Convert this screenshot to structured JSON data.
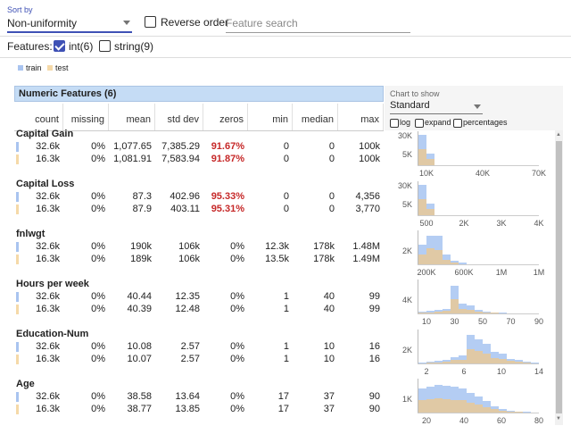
{
  "controls": {
    "sort_label": "Sort by",
    "sort_value": "Non-uniformity",
    "reverse_label": "Reverse order",
    "search_placeholder": "Feature search",
    "features_label": "Features:",
    "int_label": "int(6)",
    "string_label": "string(9)"
  },
  "legend": {
    "train": "train",
    "test": "test",
    "train_color": "#a9c4f0",
    "test_color": "#f5d9a8"
  },
  "table": {
    "title": "Numeric Features (6)",
    "columns": [
      "count",
      "missing",
      "mean",
      "std dev",
      "zeros",
      "min",
      "median",
      "max"
    ],
    "features": [
      {
        "name": "Capital Gain",
        "rows": [
          [
            "32.6k",
            "0%",
            "1,077.65",
            "7,385.29",
            "91.67%",
            "0",
            "0",
            "100k"
          ],
          [
            "16.3k",
            "0%",
            "1,081.91",
            "7,583.94",
            "91.87%",
            "0",
            "0",
            "100k"
          ]
        ],
        "zeros_red": true
      },
      {
        "name": "Capital Loss",
        "rows": [
          [
            "32.6k",
            "0%",
            "87.3",
            "402.96",
            "95.33%",
            "0",
            "0",
            "4,356"
          ],
          [
            "16.3k",
            "0%",
            "87.9",
            "403.11",
            "95.31%",
            "0",
            "0",
            "3,770"
          ]
        ],
        "zeros_red": true
      },
      {
        "name": "fnlwgt",
        "rows": [
          [
            "32.6k",
            "0%",
            "190k",
            "106k",
            "0%",
            "12.3k",
            "178k",
            "1.48M"
          ],
          [
            "16.3k",
            "0%",
            "189k",
            "106k",
            "0%",
            "13.5k",
            "178k",
            "1.49M"
          ]
        ],
        "zeros_red": false
      },
      {
        "name": "Hours per week",
        "rows": [
          [
            "32.6k",
            "0%",
            "40.44",
            "12.35",
            "0%",
            "1",
            "40",
            "99"
          ],
          [
            "16.3k",
            "0%",
            "40.39",
            "12.48",
            "0%",
            "1",
            "40",
            "99"
          ]
        ],
        "zeros_red": false
      },
      {
        "name": "Education-Num",
        "rows": [
          [
            "32.6k",
            "0%",
            "10.08",
            "2.57",
            "0%",
            "1",
            "10",
            "16"
          ],
          [
            "16.3k",
            "0%",
            "10.07",
            "2.57",
            "0%",
            "1",
            "10",
            "16"
          ]
        ],
        "zeros_red": false
      },
      {
        "name": "Age",
        "rows": [
          [
            "32.6k",
            "0%",
            "38.58",
            "13.64",
            "0%",
            "17",
            "37",
            "90"
          ],
          [
            "16.3k",
            "0%",
            "38.77",
            "13.85",
            "0%",
            "17",
            "37",
            "90"
          ]
        ],
        "zeros_red": false
      }
    ]
  },
  "chart_controls": {
    "label": "Chart to show",
    "value": "Standard",
    "log": "log",
    "expand": "expand",
    "percentages": "percentages"
  },
  "charts": [
    {
      "y_tick_labels": [
        "30K",
        "5K"
      ],
      "x_tick_labels": [
        "10K",
        "40K",
        "70K"
      ],
      "train": [
        0.95,
        0.35,
        0,
        0,
        0,
        0,
        0,
        0,
        0,
        0,
        0,
        0,
        0,
        0,
        0
      ],
      "test": [
        0.5,
        0.2,
        0,
        0,
        0,
        0,
        0,
        0,
        0,
        0,
        0,
        0,
        0,
        0,
        0
      ]
    },
    {
      "y_tick_labels": [
        "30K",
        "5K"
      ],
      "x_tick_labels": [
        "500",
        "2K",
        "3K",
        "4K"
      ],
      "train": [
        0.95,
        0.35,
        0,
        0,
        0,
        0,
        0,
        0,
        0,
        0,
        0,
        0,
        0,
        0,
        0
      ],
      "test": [
        0.5,
        0.2,
        0,
        0,
        0,
        0,
        0,
        0,
        0,
        0,
        0,
        0,
        0,
        0,
        0
      ]
    },
    {
      "y_tick_labels": [
        "2K"
      ],
      "x_tick_labels": [
        "200K",
        "600K",
        "1M",
        "1M"
      ],
      "train": [
        0.6,
        0.9,
        0.9,
        0.3,
        0.1,
        0.05,
        0,
        0,
        0,
        0,
        0,
        0,
        0,
        0,
        0
      ],
      "test": [
        0.3,
        0.5,
        0.45,
        0.15,
        0.05,
        0,
        0,
        0,
        0,
        0,
        0,
        0,
        0,
        0,
        0
      ]
    },
    {
      "y_tick_labels": [
        "4K"
      ],
      "x_tick_labels": [
        "10",
        "30",
        "50",
        "70",
        "90"
      ],
      "train": [
        0.05,
        0.08,
        0.12,
        0.15,
        0.85,
        0.3,
        0.25,
        0.1,
        0.05,
        0.03,
        0.02,
        0.01,
        0,
        0,
        0
      ],
      "test": [
        0.03,
        0.04,
        0.06,
        0.08,
        0.45,
        0.15,
        0.12,
        0.05,
        0.03,
        0.02,
        0.01,
        0,
        0,
        0,
        0
      ]
    },
    {
      "y_tick_labels": [
        "2K"
      ],
      "x_tick_labels": [
        "2",
        "6",
        "10",
        "14"
      ],
      "train": [
        0.02,
        0.05,
        0.08,
        0.12,
        0.2,
        0.25,
        0.9,
        0.75,
        0.6,
        0.35,
        0.3,
        0.15,
        0.1,
        0.05,
        0.03
      ],
      "test": [
        0.01,
        0.03,
        0.04,
        0.06,
        0.1,
        0.12,
        0.45,
        0.4,
        0.3,
        0.18,
        0.15,
        0.08,
        0.05,
        0.03,
        0.01
      ]
    },
    {
      "y_tick_labels": [
        "1K"
      ],
      "x_tick_labels": [
        "20",
        "40",
        "60",
        "80"
      ],
      "train": [
        0.75,
        0.8,
        0.85,
        0.82,
        0.8,
        0.75,
        0.6,
        0.5,
        0.35,
        0.2,
        0.1,
        0.05,
        0.03,
        0.02,
        0.01
      ],
      "test": [
        0.4,
        0.42,
        0.45,
        0.43,
        0.4,
        0.38,
        0.3,
        0.25,
        0.18,
        0.1,
        0.05,
        0.03,
        0.02,
        0.01,
        0
      ]
    }
  ]
}
